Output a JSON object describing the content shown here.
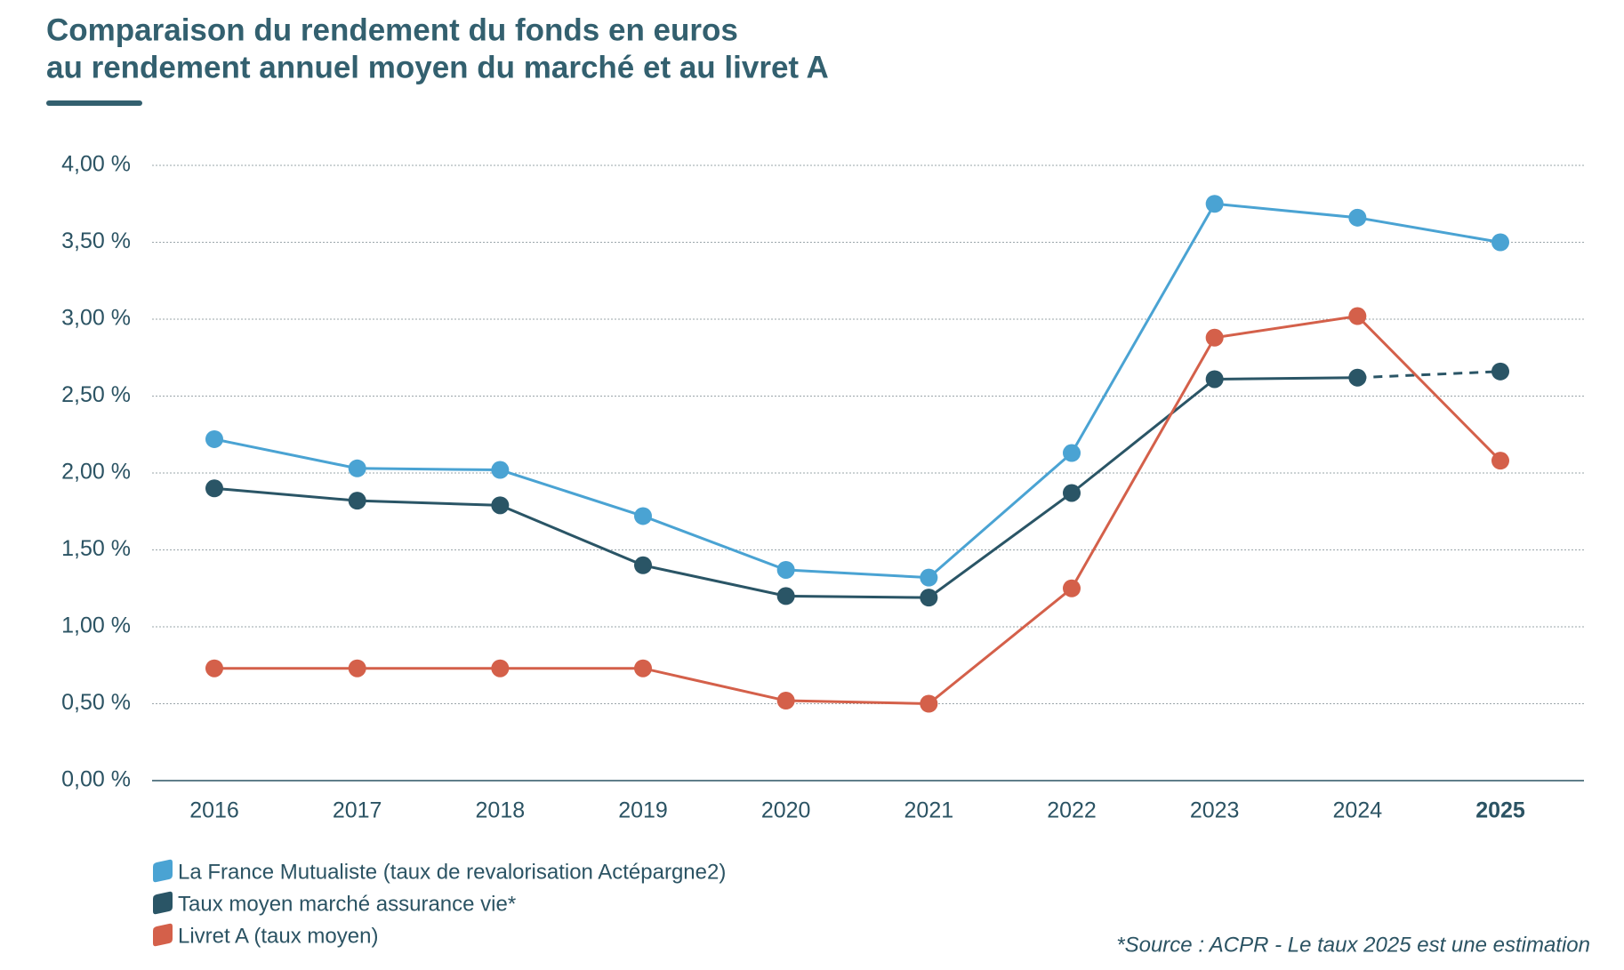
{
  "chart_data": {
    "type": "line",
    "title": [
      "Comparaison du rendement du fonds en euros",
      "au rendement annuel moyen du marché et au livret A"
    ],
    "categories": [
      "2016",
      "2017",
      "2018",
      "2019",
      "2020",
      "2021",
      "2022",
      "2023",
      "2024",
      "2025"
    ],
    "series": [
      {
        "name": "La France Mutualiste (taux de revalorisation Actépargne2)",
        "color": "#4aa3d3",
        "values": [
          2.22,
          2.03,
          2.02,
          1.72,
          1.37,
          1.32,
          2.13,
          3.75,
          3.66,
          3.5
        ]
      },
      {
        "name": "Taux moyen marché assurance vie*",
        "color": "#2a5566",
        "values": [
          1.9,
          1.82,
          1.79,
          1.4,
          1.2,
          1.19,
          1.87,
          2.61,
          2.62,
          2.66
        ],
        "dash_last": true
      },
      {
        "name": "Livret A (taux moyen)",
        "color": "#d4604a",
        "values": [
          0.73,
          0.73,
          0.73,
          0.73,
          0.52,
          0.5,
          1.25,
          2.88,
          3.02,
          2.08
        ]
      }
    ],
    "ylim": [
      0,
      4
    ],
    "yticks": [
      {
        "value": 0,
        "label": "0,00 %"
      },
      {
        "value": 0.5,
        "label": "0,50 %"
      },
      {
        "value": 1,
        "label": "1,00 %"
      },
      {
        "value": 1.5,
        "label": "1,50 %"
      },
      {
        "value": 2,
        "label": "2,00 %"
      },
      {
        "value": 2.5,
        "label": "2,50 %"
      },
      {
        "value": 3,
        "label": "3,00 %"
      },
      {
        "value": 3.5,
        "label": "3,50 %"
      },
      {
        "value": 4,
        "label": "4,00 %"
      }
    ],
    "grid": true,
    "footnote": "*Source : ACPR - Le taux 2025 est une estimation"
  }
}
